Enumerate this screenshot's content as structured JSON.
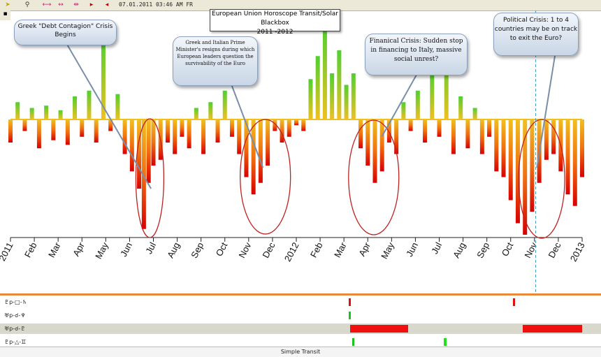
{
  "toolbar": {
    "date_time": "07.01.2011  03:46 AM FR",
    "icons": [
      "pointer-icon",
      "zoom-icon",
      "range-icon",
      "expand-icon",
      "shrink-icon",
      "step-forward-icon",
      "step-back-icon",
      "save-icon"
    ]
  },
  "chart_data": {
    "type": "bar",
    "title": "European Union Horoscope Transit/Solar Blackbox",
    "subtitle": "2011 -2012",
    "x_ticks": [
      "2011",
      "Feb",
      "Mar",
      "Apr",
      "May",
      "Jun",
      "Jul",
      "Aug",
      "Sep",
      "Oct",
      "Nov",
      "Dec",
      "2012",
      "Feb",
      "Mar",
      "Apr",
      "May",
      "Jun",
      "Jul",
      "Aug",
      "Sep",
      "Oct",
      "Nov",
      "Dec",
      "2013"
    ],
    "x_range_months": [
      0,
      24
    ],
    "baseline": 0,
    "ylim": [
      -100,
      100
    ],
    "series": [
      {
        "name": "daily transit score",
        "month_index": [
          0,
          0.3,
          0.6,
          0.9,
          1.2,
          1.5,
          1.8,
          2.1,
          2.4,
          2.7,
          3,
          3.3,
          3.6,
          3.9,
          4.2,
          4.5,
          4.8,
          5.1,
          5.4,
          5.6,
          5.8,
          6,
          6.3,
          6.6,
          6.9,
          7.2,
          7.5,
          7.8,
          8.1,
          8.4,
          8.7,
          9,
          9.3,
          9.6,
          9.9,
          10.2,
          10.5,
          10.8,
          11.1,
          11.4,
          11.7,
          12,
          12.3,
          12.6,
          12.9,
          13.2,
          13.5,
          13.8,
          14.1,
          14.4,
          14.7,
          15,
          15.3,
          15.6,
          15.9,
          16.2,
          16.5,
          16.8,
          17.1,
          17.4,
          17.7,
          18,
          18.3,
          18.6,
          18.9,
          19.2,
          19.5,
          19.8,
          20.1,
          20.4,
          20.7,
          21,
          21.3,
          21.6,
          21.9,
          22.2,
          22.5,
          22.8,
          23.1,
          23.4,
          23.7,
          24
        ],
        "values": [
          -20,
          15,
          -10,
          10,
          -25,
          12,
          -18,
          8,
          -22,
          20,
          -15,
          25,
          -20,
          70,
          -10,
          22,
          -30,
          -45,
          -60,
          -95,
          -55,
          -40,
          -35,
          -20,
          -30,
          -15,
          -25,
          10,
          -30,
          15,
          -20,
          25,
          -15,
          -30,
          -50,
          -65,
          -55,
          -40,
          -10,
          -20,
          -15,
          -5,
          -10,
          35,
          55,
          80,
          40,
          60,
          30,
          40,
          -25,
          -40,
          -55,
          -45,
          -20,
          -30,
          15,
          -10,
          25,
          -20,
          40,
          -15,
          55,
          -30,
          20,
          -25,
          10,
          -30,
          -15,
          -45,
          -50,
          -70,
          -90,
          -100,
          -80,
          -55,
          -35,
          -30,
          -45,
          -65,
          -75,
          -50
        ]
      }
    ],
    "annotations": [
      "Greek \"Debt Contagion\" Crisis Begins",
      "Greek and Italian Prime Minister's resigns during which European leaders question the survivability of the Euro",
      "Finanical Crisis:  Sudden stop in financing to Italy, massive social unrest?",
      "Political Crisis: 1 to 4 countries may be on track to exit the Euro?"
    ]
  },
  "transit_rows": [
    {
      "label": "♇p-□-♄",
      "highlight": false,
      "events": [
        {
          "start": 14.2,
          "end": 14.3,
          "color": "#e01010"
        },
        {
          "start": 21.1,
          "end": 21.15,
          "color": "#e01010"
        }
      ]
    },
    {
      "label": "♅p-☌-♆",
      "highlight": false,
      "events": [
        {
          "start": 14.2,
          "end": 14.25,
          "color": "#20c020"
        }
      ]
    },
    {
      "label": "♅p-☌-♇",
      "highlight": true,
      "events": [
        {
          "start": 14.25,
          "end": 16.7,
          "color": "#f01010"
        },
        {
          "start": 21.5,
          "end": 24.0,
          "color": "#f01010"
        }
      ]
    },
    {
      "label": "♇p-△-♊",
      "highlight": false,
      "events": [
        {
          "start": 14.35,
          "end": 14.4,
          "color": "#20c020"
        },
        {
          "start": 18.2,
          "end": 18.3,
          "color": "#20e020"
        }
      ]
    }
  ],
  "footer_label": "Simple Transit"
}
